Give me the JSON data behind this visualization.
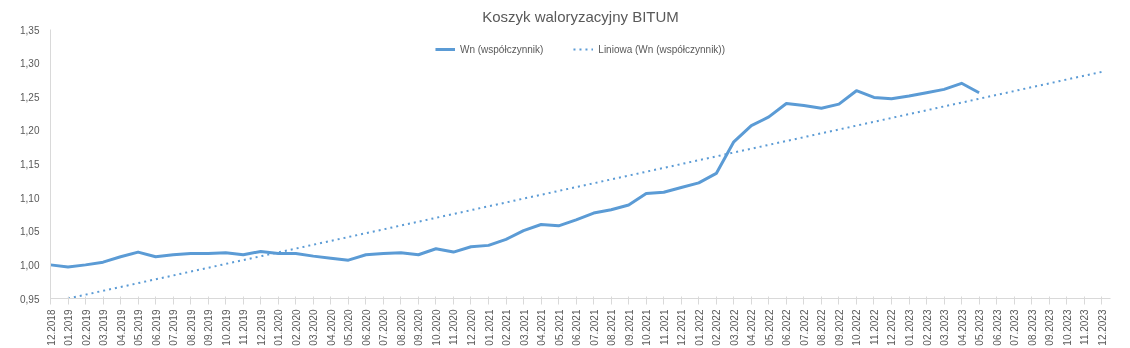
{
  "chart_data": {
    "type": "line",
    "title": "Koszyk waloryzacyjny BITUM",
    "categories": [
      "12.2018",
      "01.2019",
      "02.2019",
      "03.2019",
      "04.2019",
      "05.2019",
      "06.2019",
      "07.2019",
      "08.2019",
      "09.2019",
      "10.2019",
      "11.2019",
      "12.2019",
      "01.2020",
      "02.2020",
      "03.2020",
      "04.2020",
      "05.2020",
      "06.2020",
      "07.2020",
      "08.2020",
      "09.2020",
      "10.2020",
      "11.2020",
      "12.2020",
      "01.2021",
      "02.2021",
      "03.2021",
      "04.2021",
      "05.2021",
      "06.2021",
      "07.2021",
      "08.2021",
      "09.2021",
      "10.2021",
      "11.2021",
      "12.2021",
      "01.2022",
      "02.2022",
      "03.2022",
      "04.2022",
      "05.2022",
      "06.2022",
      "07.2022",
      "08.2022",
      "09.2022",
      "10.2022",
      "11.2022",
      "12.2022",
      "01.2023",
      "02.2023",
      "03.2023",
      "04.2023",
      "05.2023",
      "06.2023",
      "07.2023",
      "08.2023",
      "09.2023",
      "10.2023",
      "11.2023",
      "12.2023"
    ],
    "series": [
      {
        "name": "Wn (współczynnik)",
        "color": "#5b9bd5",
        "line_style": "solid",
        "values": [
          1.0,
          0.997,
          1.0,
          1.004,
          1.012,
          1.019,
          1.012,
          1.015,
          1.017,
          1.017,
          1.018,
          1.015,
          1.02,
          1.017,
          1.017,
          1.013,
          1.01,
          1.007,
          1.015,
          1.017,
          1.018,
          1.015,
          1.024,
          1.019,
          1.027,
          1.029,
          1.038,
          1.051,
          1.06,
          1.058,
          1.067,
          1.077,
          1.082,
          1.089,
          1.106,
          1.108,
          1.115,
          1.122,
          1.136,
          1.183,
          1.207,
          1.22,
          1.24,
          1.237,
          1.233,
          1.239,
          1.259,
          1.249,
          1.247,
          1.251,
          1.256,
          1.261,
          1.27,
          1.256,
          null,
          null,
          null,
          null,
          null,
          null,
          null
        ]
      },
      {
        "name": "Liniowa (Wn (współczynnik))",
        "color": "#5b9bd5",
        "line_style": "dotted",
        "x": [
          "01.2019",
          "12.2023"
        ],
        "values": [
          0.95,
          1.287
        ]
      }
    ],
    "ylim": [
      0.95,
      1.35
    ],
    "yticks": [
      {
        "value": 0.95,
        "label": "0,95"
      },
      {
        "value": 1.0,
        "label": "1,00"
      },
      {
        "value": 1.05,
        "label": "1,05"
      },
      {
        "value": 1.1,
        "label": "1,10"
      },
      {
        "value": 1.15,
        "label": "1,15"
      },
      {
        "value": 1.2,
        "label": "1,20"
      },
      {
        "value": 1.25,
        "label": "1,25"
      },
      {
        "value": 1.3,
        "label": "1,30"
      },
      {
        "value": 1.35,
        "label": "1,35"
      }
    ],
    "grid": false,
    "legend": "top",
    "marker": "none"
  }
}
